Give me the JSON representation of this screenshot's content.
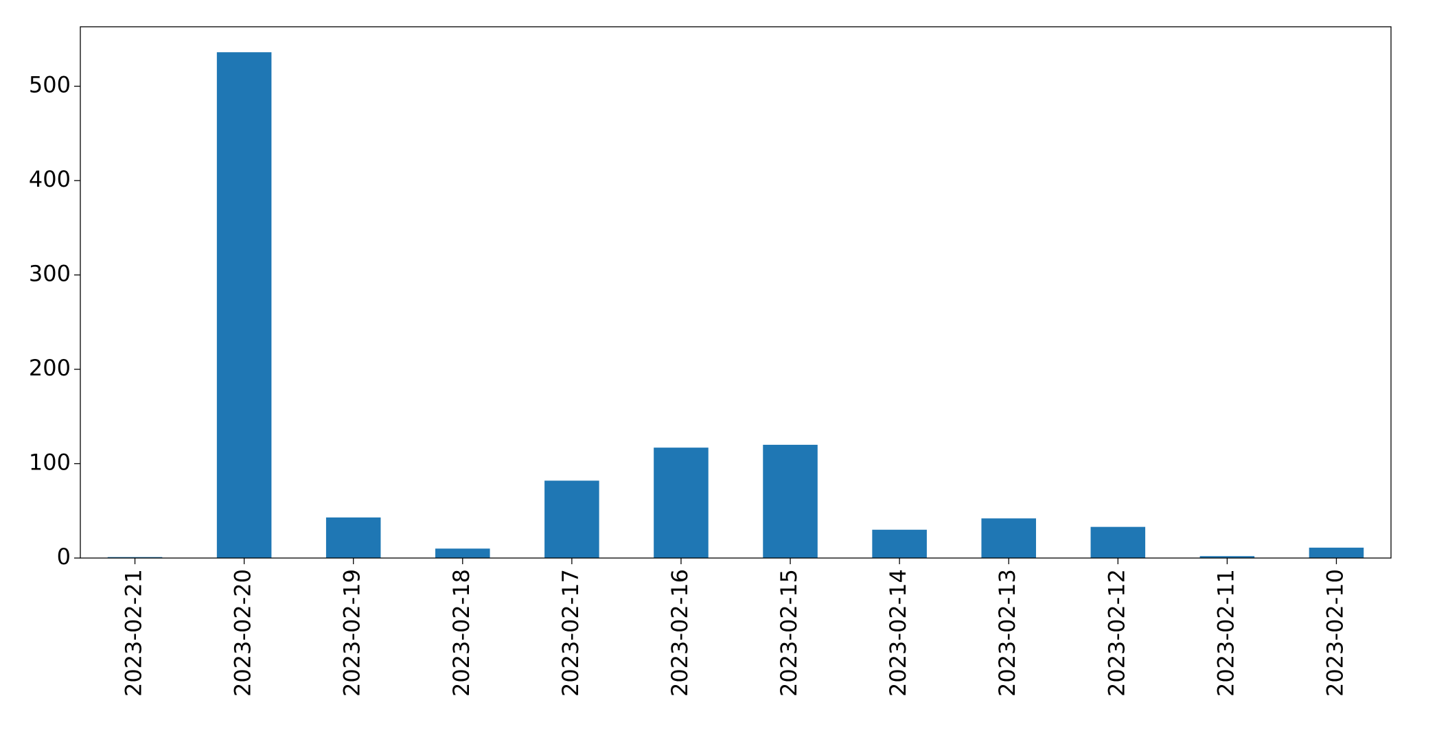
{
  "chart_data": {
    "type": "bar",
    "categories": [
      "2023-02-21",
      "2023-02-20",
      "2023-02-19",
      "2023-02-18",
      "2023-02-17",
      "2023-02-16",
      "2023-02-15",
      "2023-02-14",
      "2023-02-13",
      "2023-02-12",
      "2023-02-11",
      "2023-02-10"
    ],
    "values": [
      1,
      536,
      43,
      10,
      82,
      117,
      120,
      30,
      42,
      33,
      2,
      11
    ],
    "color": "#1f77b4",
    "ylim": [
      0,
      563
    ],
    "yticks": [
      0,
      100,
      200,
      300,
      400,
      500
    ],
    "grid": false
  }
}
